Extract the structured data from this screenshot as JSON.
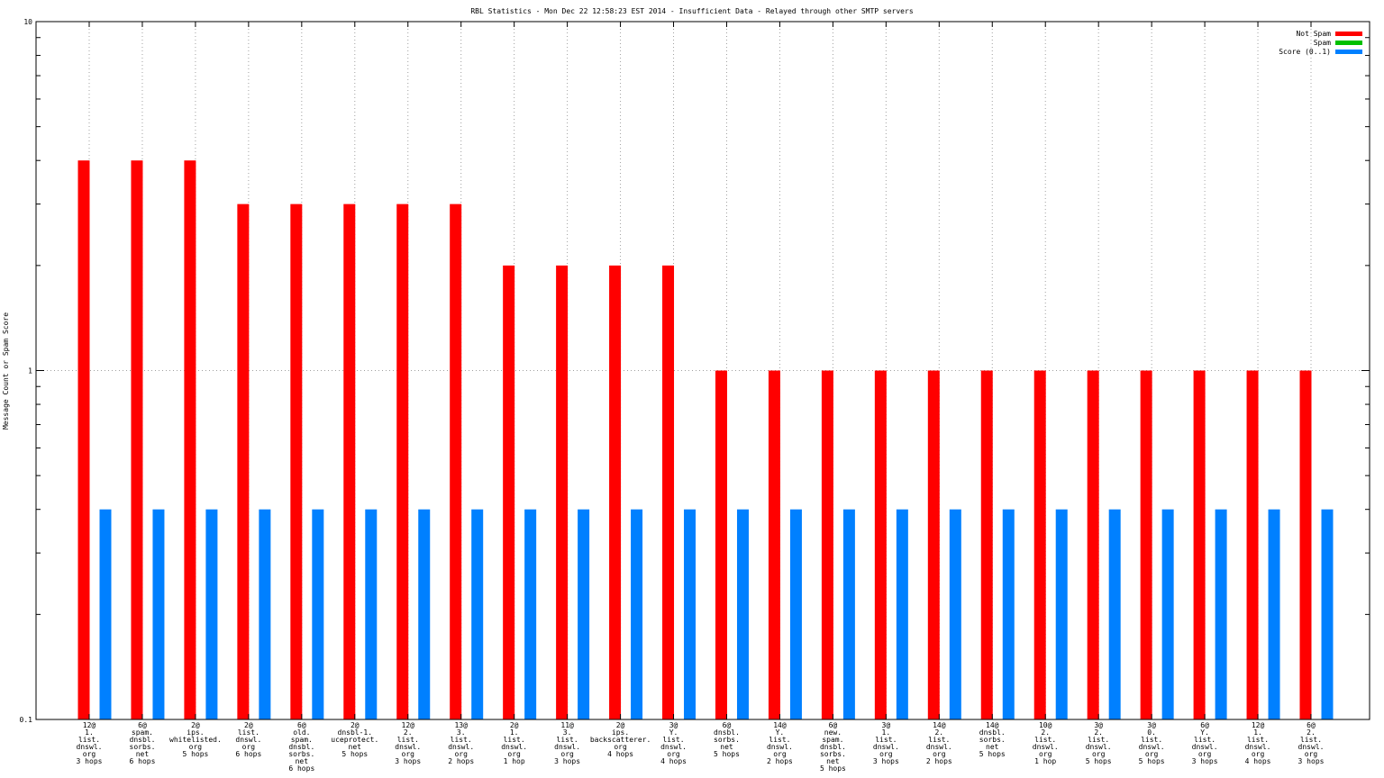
{
  "chart_data": {
    "type": "bar",
    "title": "RBL Statistics - Mon Dec 22 12:58:23 EST 2014 - Insufficient Data - Relayed through other SMTP servers",
    "ylabel": "Message Count or Spam Score",
    "xlabel": "",
    "yscale": "log",
    "ylim": [
      0.1,
      10
    ],
    "yticks": [
      "0.1",
      "1",
      "10"
    ],
    "grid": true,
    "legend_position": "top-right",
    "legend": [
      {
        "name": "Not Spam",
        "color": "#ff0000"
      },
      {
        "name": "Spam",
        "color": "#00c000"
      },
      {
        "name": "Score (0..1)",
        "color": "#0080ff"
      }
    ],
    "categories": [
      [
        "12@",
        "1.",
        "list.",
        "dnswl.",
        "org",
        "3 hops"
      ],
      [
        "6@",
        "spam.",
        "dnsbl.",
        "sorbs.",
        "net",
        "6 hops"
      ],
      [
        "2@",
        "ips.",
        "whitelisted.",
        "org",
        "5 hops"
      ],
      [
        "2@",
        "list.",
        "dnswl.",
        "org",
        "6 hops"
      ],
      [
        "6@",
        "old.",
        "spam.",
        "dnsbl.",
        "sorbs.",
        "net",
        "6 hops"
      ],
      [
        "2@",
        "dnsbl-1.",
        "uceprotect.",
        "net",
        "5 hops"
      ],
      [
        "12@",
        "2.",
        "list.",
        "dnswl.",
        "org",
        "3 hops"
      ],
      [
        "13@",
        "3.",
        "list.",
        "dnswl.",
        "org",
        "2 hops"
      ],
      [
        "2@",
        "1.",
        "list.",
        "dnswl.",
        "org",
        "1 hop"
      ],
      [
        "11@",
        "3.",
        "list.",
        "dnswl.",
        "org",
        "3 hops"
      ],
      [
        "2@",
        "ips.",
        "backscatterer.",
        "org",
        "4 hops"
      ],
      [
        "3@",
        "Y.",
        "list.",
        "dnswl.",
        "org",
        "4 hops"
      ],
      [
        "6@",
        "dnsbl.",
        "sorbs.",
        "net",
        "5 hops"
      ],
      [
        "14@",
        "Y.",
        "list.",
        "dnswl.",
        "org",
        "2 hops"
      ],
      [
        "6@",
        "new.",
        "spam.",
        "dnsbl.",
        "sorbs.",
        "net",
        "5 hops"
      ],
      [
        "3@",
        "1.",
        "list.",
        "dnswl.",
        "org",
        "3 hops"
      ],
      [
        "14@",
        "2.",
        "list.",
        "dnswl.",
        "org",
        "2 hops"
      ],
      [
        "14@",
        "dnsbl.",
        "sorbs.",
        "net",
        "5 hops"
      ],
      [
        "10@",
        "2.",
        "list.",
        "dnswl.",
        "org",
        "1 hop"
      ],
      [
        "3@",
        "2.",
        "list.",
        "dnswl.",
        "org",
        "5 hops"
      ],
      [
        "3@",
        "0.",
        "list.",
        "dnswl.",
        "org",
        "5 hops"
      ],
      [
        "6@",
        "Y.",
        "list.",
        "dnswl.",
        "org",
        "3 hops"
      ],
      [
        "12@",
        "1.",
        "list.",
        "dnswl.",
        "org",
        "4 hops"
      ],
      [
        "6@",
        "2.",
        "list.",
        "dnswl.",
        "org",
        "3 hops"
      ]
    ],
    "series": [
      {
        "name": "Not Spam",
        "color": "#ff0000",
        "values": [
          4,
          4,
          4,
          3,
          3,
          3,
          3,
          3,
          2,
          2,
          2,
          2,
          1,
          1,
          1,
          1,
          1,
          1,
          1,
          1,
          1,
          1,
          1,
          1
        ]
      },
      {
        "name": "Spam",
        "color": "#00c000",
        "values": [
          0,
          0,
          0,
          0,
          0,
          0,
          0,
          0,
          0,
          0,
          0,
          0,
          0,
          0,
          0,
          0,
          0,
          0,
          0,
          0,
          0,
          0,
          0,
          0
        ]
      },
      {
        "name": "Score (0..1)",
        "color": "#0080ff",
        "values": [
          0.4,
          0.4,
          0.4,
          0.4,
          0.4,
          0.4,
          0.4,
          0.4,
          0.4,
          0.4,
          0.4,
          0.4,
          0.4,
          0.4,
          0.4,
          0.4,
          0.4,
          0.4,
          0.4,
          0.4,
          0.4,
          0.4,
          0.4,
          0.4
        ]
      }
    ]
  }
}
